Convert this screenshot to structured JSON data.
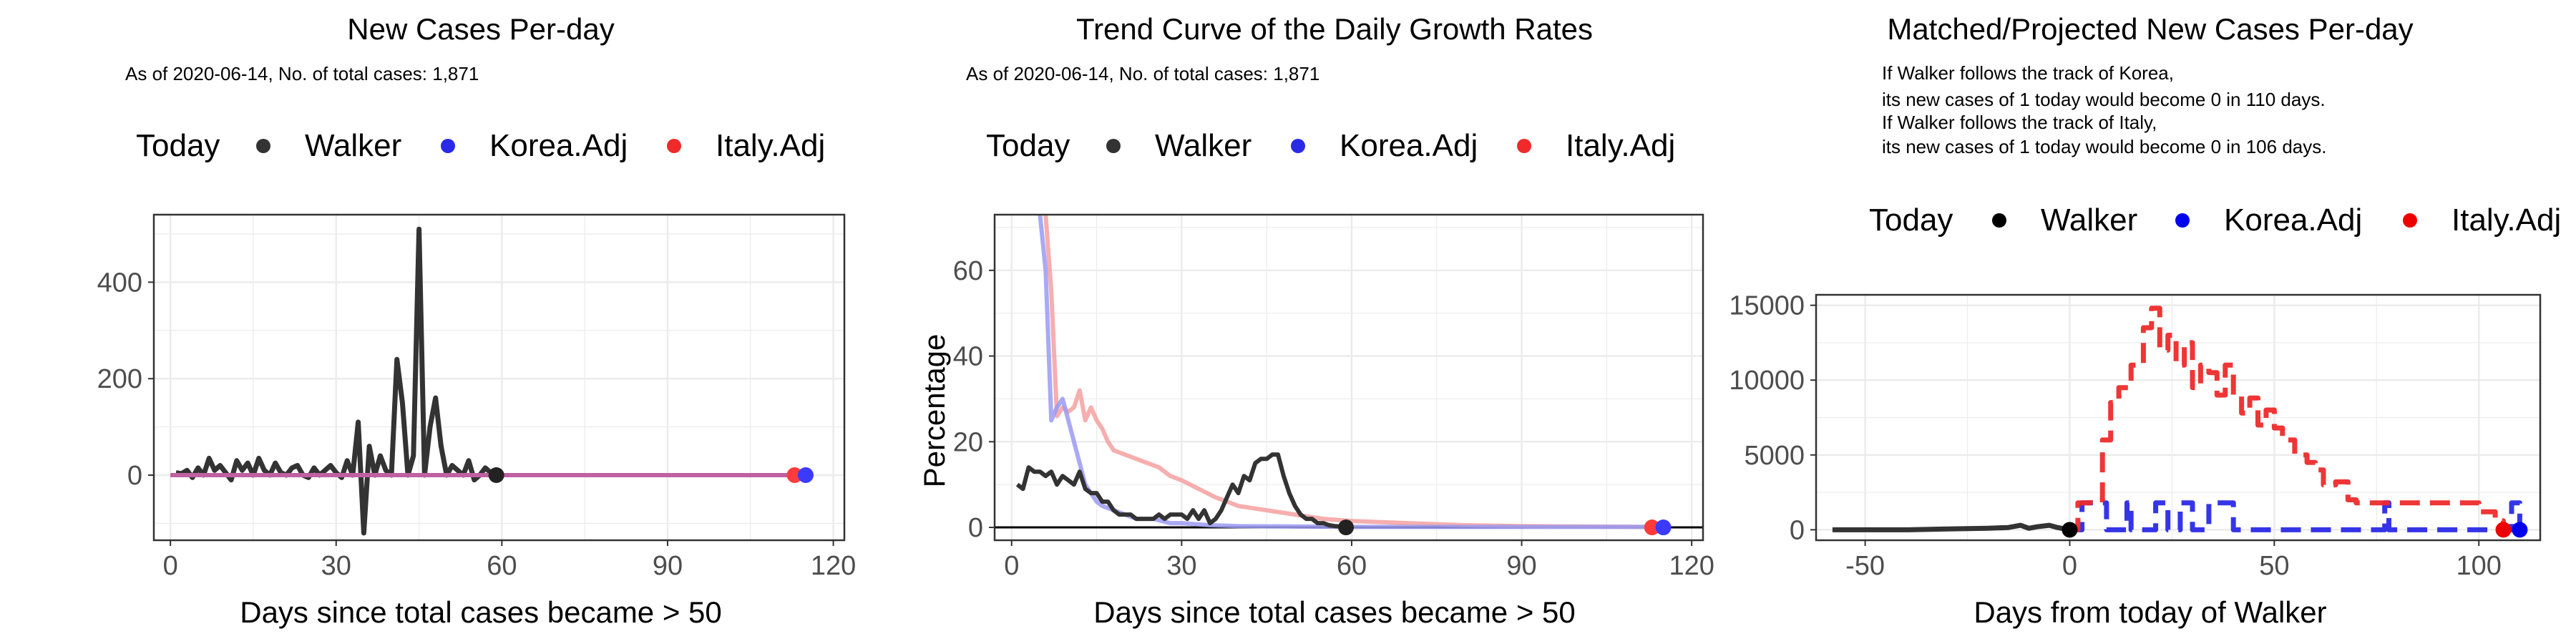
{
  "colors": {
    "walker": "#333333",
    "korea": "#2a2ae6",
    "italy": "#ee2a2a",
    "overlay": "#c060a0",
    "grid": "#ebebeb"
  },
  "legend": {
    "title": "Today",
    "items": [
      "Walker",
      "Korea.Adj",
      "Italy.Adj"
    ]
  },
  "panel1": {
    "title": "New Cases Per-day",
    "subtitle": "As of 2020-06-14, No. of total cases: 1,871",
    "xlabel": "Days since total cases became > 50",
    "ylabel": "",
    "xticks": [
      "0",
      "30",
      "60",
      "90",
      "120"
    ],
    "yticks": [
      "0",
      "200",
      "400"
    ]
  },
  "panel2": {
    "title": "Trend Curve of the Daily Growth Rates",
    "subtitle": "As of 2020-06-14, No. of total cases: 1,871",
    "xlabel": "Days since total cases became > 50",
    "ylabel": "Percentage",
    "xticks": [
      "0",
      "30",
      "60",
      "90",
      "120"
    ],
    "yticks": [
      "0",
      "20",
      "40",
      "60"
    ]
  },
  "panel3": {
    "title": "Matched/Projected New Cases Per-day",
    "note_lines": [
      "If Walker follows the track of Korea,",
      "its new cases of 1 today would become 0 in 110 days.",
      "If Walker follows the track of Italy,",
      "its new cases of 1 today would become 0 in 106 days."
    ],
    "xlabel": "Days from today of Walker",
    "ylabel": "",
    "xticks": [
      "-50",
      "0",
      "50",
      "100"
    ],
    "yticks": [
      "0",
      "5000",
      "10000",
      "15000"
    ]
  },
  "chart_data": [
    {
      "type": "line",
      "title": "New Cases Per-day",
      "xlabel": "Days since total cases became > 50",
      "xlim": [
        -3,
        122
      ],
      "ylim": [
        -135,
        540
      ],
      "series": [
        {
          "name": "Walker",
          "x": [
            1,
            2,
            3,
            4,
            5,
            6,
            7,
            8,
            9,
            10,
            11,
            12,
            13,
            14,
            15,
            16,
            17,
            18,
            19,
            20,
            21,
            22,
            23,
            24,
            25,
            26,
            27,
            28,
            29,
            30,
            31,
            32,
            33,
            34,
            35,
            36,
            37,
            38,
            39,
            40,
            41,
            42,
            43,
            44,
            45,
            46,
            47,
            48,
            49,
            50,
            51,
            52,
            53,
            54,
            55,
            56,
            57,
            58,
            59
          ],
          "y": [
            5,
            3,
            10,
            -5,
            15,
            0,
            35,
            10,
            20,
            5,
            -10,
            30,
            10,
            25,
            0,
            35,
            10,
            0,
            25,
            5,
            0,
            15,
            20,
            0,
            -5,
            15,
            0,
            10,
            20,
            5,
            -5,
            30,
            0,
            110,
            -120,
            60,
            0,
            40,
            10,
            0,
            240,
            150,
            0,
            40,
            510,
            0,
            100,
            160,
            60,
            0,
            20,
            10,
            0,
            30,
            -10,
            0,
            15,
            5,
            0
          ]
        },
        {
          "name": "Korea.Adj",
          "x": [
            0,
            115
          ],
          "y": [
            0,
            0
          ]
        },
        {
          "name": "Italy.Adj",
          "x": [
            0,
            113
          ],
          "y": [
            0,
            0
          ]
        }
      ],
      "today": {
        "Walker": [
          59,
          0
        ],
        "Korea.Adj": [
          115,
          0
        ],
        "Italy.Adj": [
          113,
          0
        ]
      }
    },
    {
      "type": "line",
      "title": "Trend Curve of the Daily Growth Rates",
      "xlabel": "Days since total cases became > 50",
      "ylabel": "Percentage",
      "xlim": [
        -3,
        122
      ],
      "ylim": [
        -3,
        73
      ],
      "series": [
        {
          "name": "Walker",
          "x": [
            1,
            2,
            3,
            4,
            5,
            6,
            7,
            8,
            9,
            10,
            11,
            12,
            13,
            14,
            15,
            16,
            17,
            18,
            19,
            20,
            21,
            22,
            23,
            24,
            25,
            26,
            27,
            28,
            29,
            30,
            31,
            32,
            33,
            34,
            35,
            36,
            37,
            38,
            39,
            40,
            41,
            42,
            43,
            44,
            45,
            46,
            47,
            48,
            49,
            50,
            51,
            52,
            53,
            54,
            55,
            56,
            57,
            58,
            59
          ],
          "y": [
            10,
            9,
            14,
            13,
            13,
            12,
            13,
            10,
            12,
            11,
            10,
            13,
            9,
            8,
            8,
            6,
            6,
            4,
            3,
            3,
            3,
            2,
            2,
            2,
            2,
            3,
            2,
            3,
            3,
            3,
            2,
            4,
            2,
            4,
            1,
            2,
            4,
            7,
            10,
            8,
            12,
            11,
            15,
            16,
            16,
            17,
            17,
            12,
            8,
            5,
            3,
            2,
            2,
            1,
            1,
            0.5,
            0.3,
            0.2,
            0
          ]
        },
        {
          "name": "Korea.Adj",
          "x": [
            5,
            6,
            7,
            8,
            9,
            10,
            11,
            12,
            13,
            14,
            15,
            16,
            18,
            20,
            22,
            25,
            28,
            30,
            35,
            40,
            50,
            60,
            80,
            100,
            115
          ],
          "y": [
            73,
            60,
            25,
            28,
            30,
            25,
            20,
            15,
            10,
            8,
            6,
            5,
            4,
            3,
            2,
            2,
            1,
            1,
            0.5,
            0.3,
            0.2,
            0.1,
            0.1,
            0.1,
            0.1
          ]
        },
        {
          "name": "Italy.Adj",
          "x": [
            6,
            7,
            8,
            9,
            10,
            11,
            12,
            13,
            14,
            15,
            16,
            17,
            18,
            20,
            22,
            24,
            26,
            28,
            30,
            33,
            36,
            40,
            45,
            50,
            55,
            60,
            70,
            80,
            90,
            100,
            113
          ],
          "y": [
            73,
            55,
            26,
            28,
            27,
            28,
            32,
            25,
            28,
            25,
            23,
            20,
            18,
            17,
            16,
            15,
            14,
            12,
            11,
            9,
            7,
            5,
            4,
            3,
            2,
            1.5,
            1,
            0.5,
            0.3,
            0.2,
            0.1
          ]
        }
      ],
      "today": {
        "Walker": [
          59,
          0
        ],
        "Korea.Adj": [
          115,
          0
        ],
        "Italy.Adj": [
          113,
          0
        ]
      }
    },
    {
      "type": "line",
      "title": "Matched/Projected New Cases Per-day",
      "xlabel": "Days from today of Walker",
      "xlim": [
        -62,
        115
      ],
      "ylim": [
        -700,
        15700
      ],
      "series": [
        {
          "name": "Walker",
          "x": [
            -58,
            -50,
            -40,
            -30,
            -20,
            -15,
            -12,
            -10,
            -8,
            -5,
            -3,
            0
          ],
          "y": [
            0,
            0,
            0,
            50,
            100,
            150,
            300,
            100,
            200,
            300,
            150,
            0
          ]
        },
        {
          "name": "Korea.Adj",
          "x": [
            0,
            2,
            3,
            8,
            9,
            12,
            14,
            15,
            18,
            20,
            21,
            24,
            26,
            27,
            30,
            33,
            34,
            40,
            50,
            60,
            70,
            76,
            77,
            78,
            90,
            100,
            108,
            110
          ],
          "y": [
            0,
            0,
            1800,
            1800,
            0,
            0,
            1800,
            0,
            0,
            0,
            1800,
            0,
            0,
            1800,
            0,
            0,
            1800,
            0,
            0,
            0,
            0,
            0,
            1800,
            0,
            0,
            0,
            1800,
            0
          ]
        },
        {
          "name": "Italy.Adj",
          "x": [
            0,
            2,
            5,
            8,
            10,
            12,
            15,
            18,
            20,
            22,
            24,
            26,
            28,
            30,
            32,
            34,
            36,
            38,
            40,
            42,
            44,
            46,
            48,
            50,
            52,
            55,
            58,
            60,
            62,
            65,
            68,
            70,
            75,
            80,
            85,
            90,
            95,
            100,
            104,
            106
          ],
          "y": [
            0,
            1800,
            2000,
            6000,
            8500,
            9500,
            11000,
            13500,
            14800,
            12000,
            13000,
            11000,
            12500,
            9500,
            11000,
            10500,
            9000,
            11000,
            9000,
            7800,
            8800,
            7000,
            8000,
            6800,
            6000,
            5000,
            4500,
            4000,
            3000,
            3200,
            2000,
            1800,
            1800,
            1800,
            1800,
            1800,
            1800,
            1200,
            600,
            0
          ]
        }
      ],
      "today": {
        "Walker": [
          0,
          0
        ],
        "Korea.Adj": [
          110,
          0
        ],
        "Italy.Adj": [
          106,
          0
        ]
      }
    }
  ]
}
